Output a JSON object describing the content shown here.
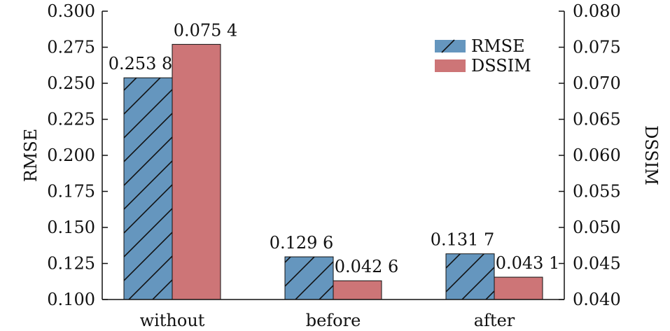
{
  "chart_data": {
    "type": "bar",
    "categories": [
      "without",
      "before",
      "after"
    ],
    "series": [
      {
        "name": "RMSE",
        "axis": "left",
        "values": [
          0.2538,
          0.1296,
          0.1317
        ],
        "value_labels": [
          "0.253 8",
          "0.129 6",
          "0.131 7"
        ],
        "color": "#6596be",
        "hatch": "diagonal"
      },
      {
        "name": "DSSIM",
        "axis": "right",
        "values": [
          0.0754,
          0.0426,
          0.0431
        ],
        "value_labels": [
          "0.075 4",
          "0.042 6",
          "0.043 1"
        ],
        "color": "#cd7577",
        "hatch": "none"
      }
    ],
    "ylabel": "RMSE",
    "y2label": "DSSIM",
    "ylim": [
      0.1,
      0.3
    ],
    "y2lim": [
      0.04,
      0.08
    ],
    "yticks": [
      "0.100",
      "0.125",
      "0.150",
      "0.175",
      "0.200",
      "0.225",
      "0.250",
      "0.275",
      "0.300"
    ],
    "y2ticks": [
      "0.040",
      "0.045",
      "0.050",
      "0.055",
      "0.060",
      "0.065",
      "0.070",
      "0.075",
      "0.080"
    ],
    "grid": false,
    "legend_position": "top-right"
  }
}
